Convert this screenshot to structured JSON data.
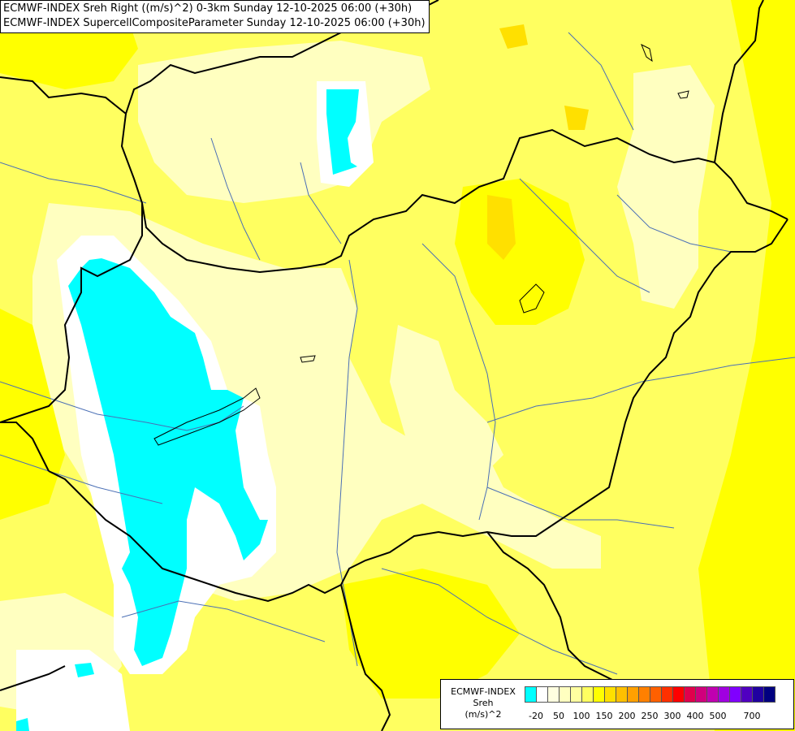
{
  "titles": {
    "line1": "ECMWF-INDEX Sreh Right ((m/s)^2) 0-3km Sunday 12-10-2025 06:00 (+30h)",
    "line2": "ECMWF-INDEX SupercellCompositeParameter Sunday 12-10-2025 06:00 (+30h)"
  },
  "legend": {
    "title1": "ECMWF-INDEX",
    "title2": "Sreh",
    "units": "(m/s)^2",
    "swatch_colors": [
      "#00ffff",
      "#ffffff",
      "#ffffe0",
      "#ffffc0",
      "#ffffa0",
      "#ffff60",
      "#ffff00",
      "#ffe000",
      "#ffc000",
      "#ffa000",
      "#ff8000",
      "#ff6000",
      "#ff3000",
      "#ff0000",
      "#e0004c",
      "#d0007c",
      "#c000b0",
      "#a000e0",
      "#8000ff",
      "#5000c0",
      "#2000a0",
      "#000080"
    ],
    "ticks": [
      "-20",
      "50",
      "100",
      "150",
      "200",
      "250",
      "300",
      "400",
      "500",
      "700"
    ]
  },
  "colors": {
    "cyan_field": "#00ffff",
    "pale_field": "#ffffc0",
    "yellow_field": "#ffff60",
    "strong_yellow": "#ffff00",
    "border": "#000000",
    "river": "#4a6fb5"
  }
}
